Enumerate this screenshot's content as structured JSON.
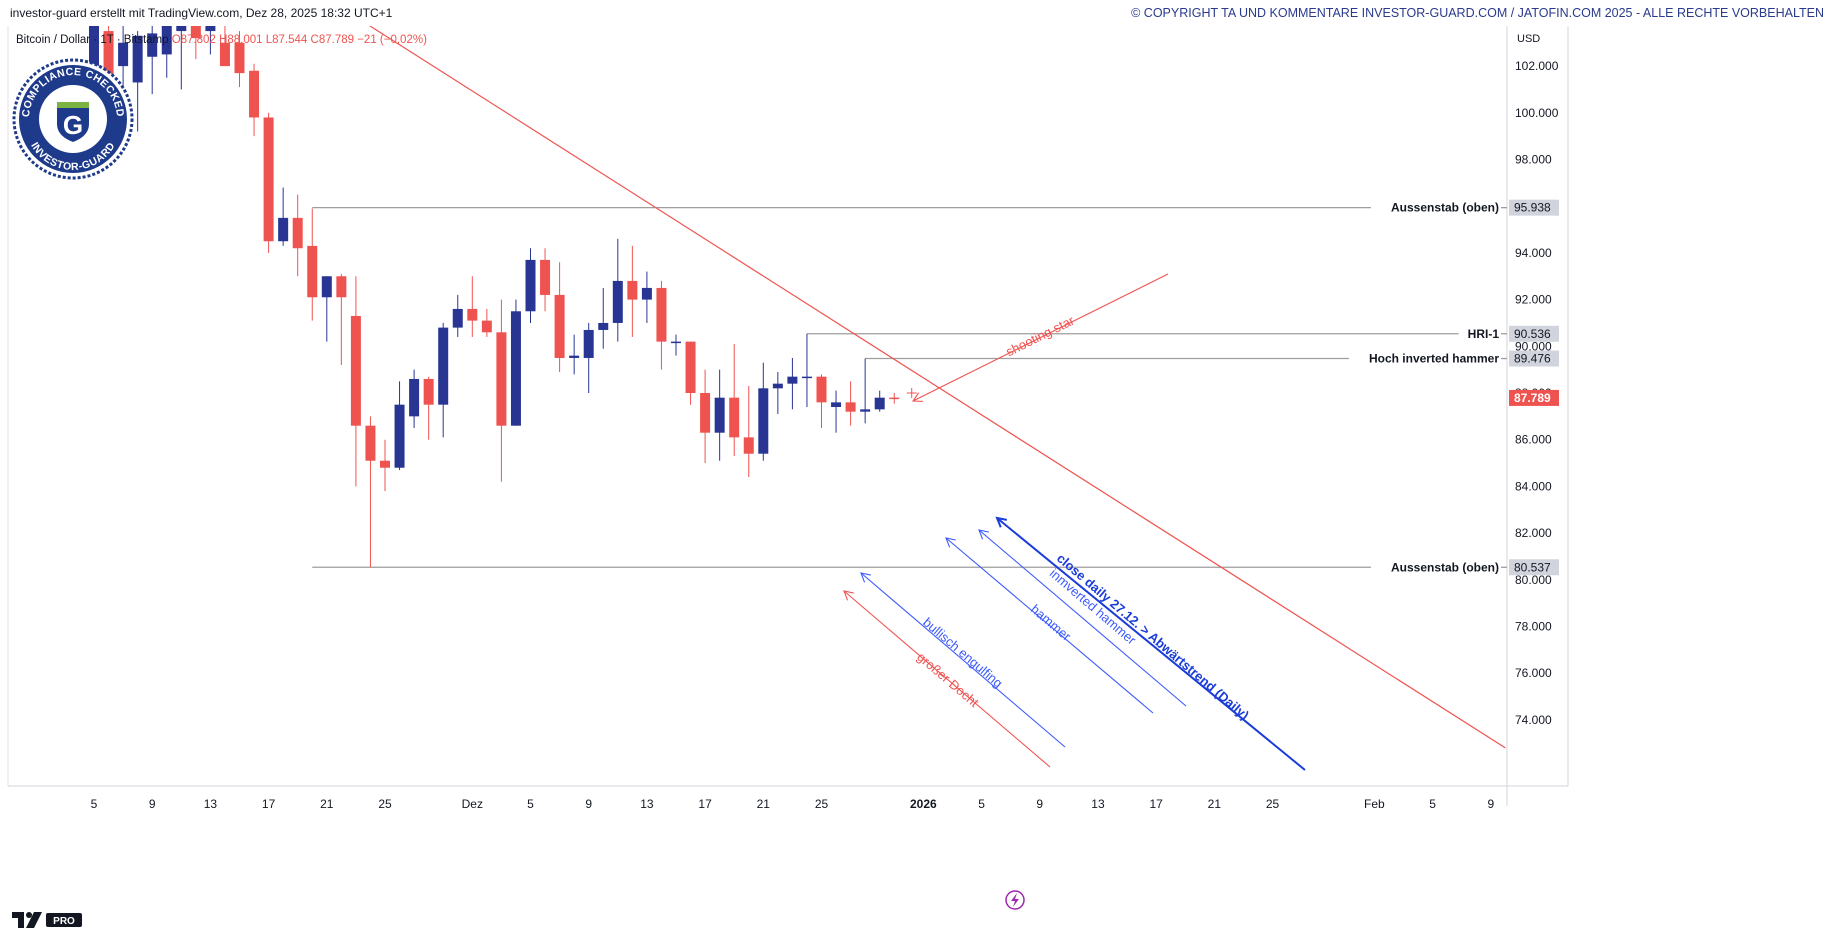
{
  "header": {
    "attribution": "investor-guard erstellt mit TradingView.com, Dez 28, 2025 18:32 UTC+1",
    "copyright": "© COPYRIGHT TA UND KOMMENTARE INVESTOR-GUARD.COM / JATOFIN.COM 2025 - ALLE RECHTE VORBEHALTEN"
  },
  "symbol": {
    "name": "Bitcoin / Dollar · 1T · Bitstamp",
    "open_label": "O87.802",
    "high_label": "H88.001",
    "low_label": "L87.544",
    "close_label": "C87.789",
    "change_label": "−21 (−0,02%)"
  },
  "badge": {
    "top_text": "COMPLIANCE CHECKED",
    "bottom_text": "INVESTOR-GUARD",
    "letter": "G",
    "colors": {
      "ring": "#1e3a8a",
      "fill": "#ffffff",
      "accent": "#7cb342"
    }
  },
  "currency": "USD",
  "tv_logo": {
    "text": "PRO",
    "icon": "tradingview-logo-icon"
  },
  "colors": {
    "up": "#283593",
    "down": "#ef5350",
    "trendline": "#ef5350",
    "level": "#9e9e9e",
    "label_bg": "#d1d4dc",
    "annotation_red": "#ef5350",
    "annotation_blue": "#3d5afe",
    "annotation_blue_dark": "#1a3cd8"
  },
  "chart_data": {
    "type": "candlestick",
    "title": "",
    "ylabel": "",
    "ylim": [
      73000,
      104000
    ],
    "y_ticks": [
      74000,
      76000,
      78000,
      80000,
      82000,
      84000,
      86000,
      88000,
      90000,
      92000,
      94000,
      96000,
      98000,
      100000,
      102000
    ],
    "y_tick_labels": [
      "74.000",
      "76.000",
      "78.000",
      "80.000",
      "82.000",
      "84.000",
      "86.000",
      "88.000",
      "90.000",
      "92.000",
      "94.000",
      "96.000",
      "98.000",
      "100.000",
      "102.000"
    ],
    "x_ticks": [
      {
        "day": 5,
        "label": "5"
      },
      {
        "day": 9,
        "label": "9"
      },
      {
        "day": 13,
        "label": "13"
      },
      {
        "day": 17,
        "label": "17"
      },
      {
        "day": 21,
        "label": "21"
      },
      {
        "day": 25,
        "label": "25"
      },
      {
        "day": 31,
        "label": "Dez"
      },
      {
        "day": 35,
        "label": "5"
      },
      {
        "day": 39,
        "label": "9"
      },
      {
        "day": 43,
        "label": "13"
      },
      {
        "day": 47,
        "label": "17"
      },
      {
        "day": 51,
        "label": "21"
      },
      {
        "day": 55,
        "label": "25"
      },
      {
        "day": 62,
        "label": "2026"
      },
      {
        "day": 66,
        "label": "5"
      },
      {
        "day": 70,
        "label": "9"
      },
      {
        "day": 74,
        "label": "13"
      },
      {
        "day": 78,
        "label": "17"
      },
      {
        "day": 82,
        "label": "21"
      },
      {
        "day": 86,
        "label": "25"
      },
      {
        "day": 93,
        "label": "Feb"
      },
      {
        "day": 97,
        "label": "5"
      },
      {
        "day": 101,
        "label": "9"
      }
    ],
    "candles_note_x": "x = day number counted from 1 Nov 2025 (Dez 1 = 31, Jan 1 = 62)",
    "candles": [
      {
        "x": 5,
        "o": 101500,
        "h": 104500,
        "l": 99000,
        "c": 104000
      },
      {
        "x": 6,
        "o": 103500,
        "h": 104000,
        "l": 99000,
        "c": 101000
      },
      {
        "x": 7,
        "o": 102000,
        "h": 104500,
        "l": 99500,
        "c": 103000
      },
      {
        "x": 8,
        "o": 101300,
        "h": 103500,
        "l": 99200,
        "c": 103300
      },
      {
        "x": 9,
        "o": 102400,
        "h": 103900,
        "l": 100800,
        "c": 103400
      },
      {
        "x": 10,
        "o": 102500,
        "h": 104000,
        "l": 101500,
        "c": 104000
      },
      {
        "x": 11,
        "o": 103500,
        "h": 104500,
        "l": 101000,
        "c": 104200
      },
      {
        "x": 12,
        "o": 103800,
        "h": 104300,
        "l": 102300,
        "c": 103200
      },
      {
        "x": 13,
        "o": 103500,
        "h": 104500,
        "l": 102500,
        "c": 104000
      },
      {
        "x": 14,
        "o": 103000,
        "h": 104500,
        "l": 102000,
        "c": 102000
      },
      {
        "x": 15,
        "o": 103000,
        "h": 103500,
        "l": 101100,
        "c": 101700
      },
      {
        "x": 16,
        "o": 101800,
        "h": 102100,
        "l": 99000,
        "c": 99800
      },
      {
        "x": 17,
        "o": 99800,
        "h": 100000,
        "l": 94000,
        "c": 94500
      },
      {
        "x": 18,
        "o": 94500,
        "h": 96800,
        "l": 94300,
        "c": 95500
      },
      {
        "x": 19,
        "o": 95500,
        "h": 96500,
        "l": 93000,
        "c": 94200
      },
      {
        "x": 20,
        "o": 94300,
        "h": 95900,
        "l": 91100,
        "c": 92100
      },
      {
        "x": 21,
        "o": 92100,
        "h": 93000,
        "l": 90200,
        "c": 93000
      },
      {
        "x": 22,
        "o": 93000,
        "h": 93100,
        "l": 89200,
        "c": 92100
      },
      {
        "x": 23,
        "o": 91300,
        "h": 93000,
        "l": 84000,
        "c": 86600
      },
      {
        "x": 24,
        "o": 86600,
        "h": 87000,
        "l": 80537,
        "c": 85100
      },
      {
        "x": 25,
        "o": 85100,
        "h": 86000,
        "l": 83800,
        "c": 84800
      },
      {
        "x": 26,
        "o": 84800,
        "h": 88500,
        "l": 84700,
        "c": 87500
      },
      {
        "x": 27,
        "o": 87000,
        "h": 89000,
        "l": 86500,
        "c": 88600
      },
      {
        "x": 28,
        "o": 88600,
        "h": 88700,
        "l": 86000,
        "c": 87500
      },
      {
        "x": 29,
        "o": 87500,
        "h": 91000,
        "l": 86100,
        "c": 90800
      },
      {
        "x": 30,
        "o": 90800,
        "h": 92200,
        "l": 90400,
        "c": 91600
      },
      {
        "x": 31,
        "o": 91600,
        "h": 93000,
        "l": 90400,
        "c": 91100
      },
      {
        "x": 32,
        "o": 91100,
        "h": 91600,
        "l": 90400,
        "c": 90600
      },
      {
        "x": 33,
        "o": 90600,
        "h": 92000,
        "l": 84200,
        "c": 86600
      },
      {
        "x": 34,
        "o": 86600,
        "h": 92000,
        "l": 86600,
        "c": 91500
      },
      {
        "x": 35,
        "o": 91500,
        "h": 94200,
        "l": 91000,
        "c": 93700
      },
      {
        "x": 36,
        "o": 93700,
        "h": 94200,
        "l": 91500,
        "c": 92200
      },
      {
        "x": 37,
        "o": 92200,
        "h": 93600,
        "l": 88900,
        "c": 89500
      },
      {
        "x": 38,
        "o": 89500,
        "h": 90500,
        "l": 88800,
        "c": 89600
      },
      {
        "x": 39,
        "o": 89500,
        "h": 91000,
        "l": 88000,
        "c": 90700
      },
      {
        "x": 40,
        "o": 90700,
        "h": 92500,
        "l": 89900,
        "c": 91000
      },
      {
        "x": 41,
        "o": 91000,
        "h": 94600,
        "l": 90200,
        "c": 92800
      },
      {
        "x": 42,
        "o": 92800,
        "h": 94300,
        "l": 90400,
        "c": 92000
      },
      {
        "x": 43,
        "o": 92000,
        "h": 93200,
        "l": 91000,
        "c": 92500
      },
      {
        "x": 44,
        "o": 92500,
        "h": 92800,
        "l": 89000,
        "c": 90200
      },
      {
        "x": 45,
        "o": 90200,
        "h": 90500,
        "l": 89600,
        "c": 90200
      },
      {
        "x": 46,
        "o": 90200,
        "h": 90200,
        "l": 87500,
        "c": 88000
      },
      {
        "x": 47,
        "o": 88000,
        "h": 89000,
        "l": 85000,
        "c": 86300
      },
      {
        "x": 48,
        "o": 86300,
        "h": 89000,
        "l": 85100,
        "c": 87800
      },
      {
        "x": 49,
        "o": 87800,
        "h": 90100,
        "l": 85300,
        "c": 86100
      },
      {
        "x": 50,
        "o": 86100,
        "h": 88300,
        "l": 84400,
        "c": 85400
      },
      {
        "x": 51,
        "o": 85400,
        "h": 89300,
        "l": 85100,
        "c": 88200
      },
      {
        "x": 52,
        "o": 88200,
        "h": 88900,
        "l": 87100,
        "c": 88400
      },
      {
        "x": 53,
        "o": 88400,
        "h": 89500,
        "l": 87300,
        "c": 88700
      },
      {
        "x": 54,
        "o": 88700,
        "h": 90536,
        "l": 87400,
        "c": 88700
      },
      {
        "x": 55,
        "o": 88700,
        "h": 88800,
        "l": 86500,
        "c": 87600
      },
      {
        "x": 56,
        "o": 87400,
        "h": 88100,
        "l": 86300,
        "c": 87600
      },
      {
        "x": 57,
        "o": 87600,
        "h": 88500,
        "l": 86600,
        "c": 87200
      },
      {
        "x": 58,
        "o": 87200,
        "h": 89476,
        "l": 86700,
        "c": 87300
      },
      {
        "x": 59,
        "o": 87300,
        "h": 88100,
        "l": 87200,
        "c": 87800
      },
      {
        "x": 60,
        "o": 87802,
        "h": 88001,
        "l": 87544,
        "c": 87789
      }
    ],
    "levels": [
      {
        "name": "Aussenstab (oben)",
        "value": 95938,
        "label": "95.938",
        "from_x": 20
      },
      {
        "name": "HRI-1",
        "value": 90536,
        "label": "90.536",
        "from_x": 54
      },
      {
        "name": "Hoch inverted hammer",
        "value": 89476,
        "label": "89.476",
        "from_x": 58
      },
      {
        "name": "Aussenstab (oben)",
        "value": 80537,
        "label": "80.537",
        "from_x": 20
      }
    ],
    "last_price": {
      "value": 87789,
      "label": "87.789"
    },
    "trendline": {
      "x1": 22,
      "y1": 104500,
      "x2": 102,
      "y2": 72800
    },
    "annotations": [
      {
        "text": "shooting star",
        "color": "red"
      },
      {
        "text": "bullisch engulfing",
        "color": "blue"
      },
      {
        "text": "großer Docht",
        "color": "red"
      },
      {
        "text": "inmverted hammer",
        "color": "blue"
      },
      {
        "text": "hammer",
        "color": "blue"
      },
      {
        "text": "close daily 27.12. > Abwärtstrend (Daily)",
        "color": "blue_dark"
      }
    ]
  }
}
